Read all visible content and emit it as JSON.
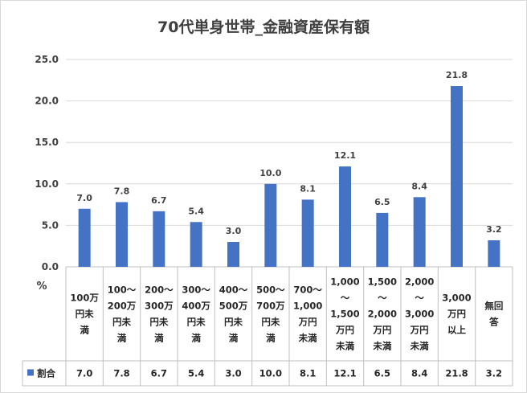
{
  "chart_data": {
    "type": "bar",
    "title": "70代単身世帯_金融資産保有額",
    "ylabel": "%",
    "ylim": [
      0,
      25
    ],
    "yticks": [
      "0.0",
      "5.0",
      "10.0",
      "15.0",
      "20.0",
      "25.0"
    ],
    "grid": true,
    "legend_position": "data-table-left",
    "categories": [
      [
        "100万",
        "円未",
        "満"
      ],
      [
        "100～",
        "200万",
        "円未",
        "満"
      ],
      [
        "200～",
        "300万",
        "円未",
        "満"
      ],
      [
        "300～",
        "400万",
        "円未",
        "満"
      ],
      [
        "400～",
        "500万",
        "円未",
        "満"
      ],
      [
        "500～",
        "700万",
        "円未",
        "満"
      ],
      [
        "700～",
        "1,000",
        "万円",
        "未満"
      ],
      [
        "1,000",
        "～",
        "1,500",
        "万円",
        "未満"
      ],
      [
        "1,500",
        "～",
        "2,000",
        "万円",
        "未満"
      ],
      [
        "2,000",
        "～",
        "3,000",
        "万円",
        "未満"
      ],
      [
        "3,000",
        "万円",
        "以上"
      ],
      [
        "無回",
        "答"
      ]
    ],
    "series": [
      {
        "name": "割合",
        "color": "#4472C4",
        "values": [
          7.0,
          7.8,
          6.7,
          5.4,
          3.0,
          10.0,
          8.1,
          12.1,
          6.5,
          8.4,
          21.8,
          3.2
        ],
        "labels": [
          "7.0",
          "7.8",
          "6.7",
          "5.4",
          "3.0",
          "10.0",
          "8.1",
          "12.1",
          "6.5",
          "8.4",
          "21.8",
          "3.2"
        ]
      }
    ]
  }
}
